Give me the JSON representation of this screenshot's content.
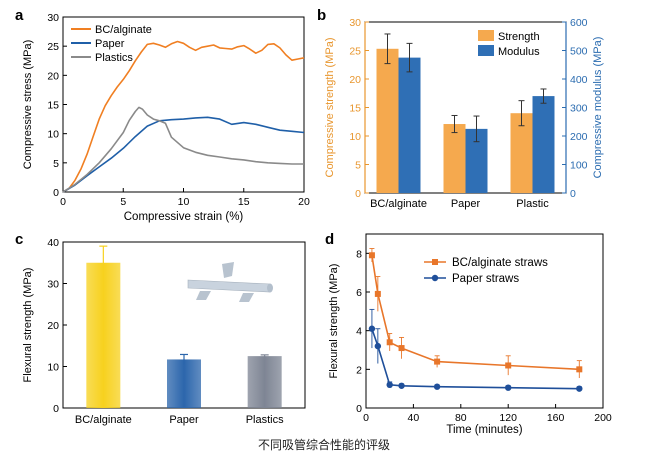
{
  "caption": "不同吸管综合性能的评级",
  "chart_data": [
    {
      "panel": "a",
      "type": "line",
      "xlabel": "Compressive strain (%)",
      "ylabel": "Compressive stress (MPa)",
      "xlim": [
        0,
        20
      ],
      "ylim": [
        0,
        30
      ],
      "xticks": [
        0,
        5,
        10,
        15,
        20
      ],
      "yticks": [
        0,
        5,
        10,
        15,
        20,
        25,
        30
      ],
      "legend_position": "top-left",
      "series": [
        {
          "name": "BC/alginate",
          "color": "#f07f22",
          "x": [
            0,
            0.5,
            1,
            1.5,
            2,
            2.5,
            3,
            3.5,
            4,
            4.5,
            5,
            5.5,
            6,
            6.5,
            7,
            7.5,
            8,
            8.5,
            9,
            9.5,
            10,
            10.5,
            11,
            11.5,
            12,
            12.5,
            13,
            13.5,
            14,
            14.5,
            15,
            15.5,
            16,
            16.5,
            17,
            17.5,
            18,
            18.5,
            19,
            19.5,
            20
          ],
          "y": [
            0,
            0.6,
            2,
            4,
            6.5,
            9.5,
            12.5,
            14.8,
            16.5,
            18,
            19.3,
            20.8,
            22.5,
            24,
            25.3,
            25.5,
            25.2,
            24.8,
            25.4,
            25.8,
            25.5,
            24.8,
            24.3,
            24.8,
            25,
            25.2,
            24.7,
            24.6,
            24.5,
            24.9,
            25.1,
            24.5,
            23.8,
            24.3,
            25.3,
            25.4,
            24.7,
            23.5,
            22.6,
            22.8,
            23
          ]
        },
        {
          "name": "Paper",
          "color": "#1f5fa8",
          "x": [
            0,
            1,
            2,
            3,
            4,
            5,
            6,
            7,
            8,
            9,
            10,
            11,
            12,
            13,
            14,
            15,
            16,
            17,
            18,
            19,
            20
          ],
          "y": [
            0,
            1.2,
            2.8,
            4.3,
            5.8,
            7.5,
            9.5,
            11.3,
            12.2,
            12.4,
            12.5,
            12.7,
            12.8,
            12.5,
            11.6,
            11.9,
            11.6,
            11.1,
            10.6,
            10.4,
            10.2
          ]
        },
        {
          "name": "Plastics",
          "color": "#8a8a8a",
          "x": [
            0,
            1,
            2,
            3,
            4,
            5,
            5.5,
            6,
            6.3,
            6.6,
            7,
            7.5,
            8,
            8.5,
            9,
            10,
            11,
            12,
            13,
            14,
            15,
            16,
            17,
            18,
            19,
            20
          ],
          "y": [
            0,
            1.3,
            3,
            5,
            7.4,
            10.2,
            12.3,
            13.8,
            14.5,
            14.2,
            13.2,
            12.5,
            12.2,
            11.8,
            9.4,
            7.6,
            6.8,
            6.3,
            6,
            5.7,
            5.5,
            5.2,
            5,
            4.9,
            4.8,
            4.8
          ]
        }
      ]
    },
    {
      "panel": "b",
      "type": "bar",
      "categories": [
        "BC/alginate",
        "Paper",
        "Plastic"
      ],
      "ylabel": "Compressive strength (MPa)",
      "ylabel_right": "Compressive modulus (MPa)",
      "ylim": [
        0,
        30
      ],
      "ylim_right": [
        0,
        600
      ],
      "yticks": [
        0,
        5,
        10,
        15,
        20,
        25,
        30
      ],
      "yticks_right": [
        0,
        100,
        200,
        300,
        400,
        500,
        600
      ],
      "left_axis_color": "#e8962e",
      "right_axis_color": "#2b6cb0",
      "legend_position": "top-right",
      "series": [
        {
          "name": "Strength",
          "axis": "left",
          "color": "#f5a94e",
          "values": [
            25.3,
            12.1,
            14.0
          ],
          "errors": [
            2.6,
            1.5,
            2.2
          ]
        },
        {
          "name": "Modulus",
          "axis": "right",
          "color": "#2f6fb5",
          "values": [
            475,
            225,
            340
          ],
          "errors": [
            50,
            45,
            25
          ]
        }
      ]
    },
    {
      "panel": "c",
      "type": "bar",
      "categories": [
        "BC/alginate",
        "Paper",
        "Plastics"
      ],
      "ylabel": "Flexural strength (MPa)",
      "ylim": [
        0,
        40
      ],
      "yticks": [
        0,
        10,
        20,
        30,
        40
      ],
      "series": [
        {
          "values": [
            35.0,
            11.7,
            12.5
          ],
          "errors": [
            4.0,
            1.2,
            0.3
          ],
          "colors": [
            "#f7d11e",
            "#2c66ac",
            "#7e8594"
          ]
        }
      ]
    },
    {
      "panel": "d",
      "type": "line",
      "xlabel": "Time (minutes)",
      "ylabel": "Flexural strength (MPa)",
      "xlim": [
        0,
        200
      ],
      "ylim": [
        0,
        9
      ],
      "xticks": [
        0,
        40,
        80,
        120,
        160,
        200
      ],
      "yticks": [
        0,
        2,
        4,
        6,
        8
      ],
      "legend_position": "top-right",
      "series": [
        {
          "name": "BC/alginate straws",
          "color": "#e8762a",
          "marker": "square",
          "x": [
            5,
            10,
            20,
            30,
            60,
            120,
            180
          ],
          "y": [
            7.9,
            5.9,
            3.4,
            3.1,
            2.4,
            2.2,
            2.0
          ],
          "errors": [
            0.35,
            0.9,
            0.45,
            0.55,
            0.3,
            0.5,
            0.45
          ]
        },
        {
          "name": "Paper straws",
          "color": "#1f4f9a",
          "marker": "circle",
          "x": [
            5,
            10,
            20,
            30,
            60,
            120,
            180
          ],
          "y": [
            4.1,
            3.2,
            1.2,
            1.15,
            1.1,
            1.05,
            1.0
          ],
          "errors": [
            1.0,
            0.9,
            0.15,
            0.1,
            0.1,
            0.1,
            0.1
          ]
        }
      ]
    }
  ]
}
